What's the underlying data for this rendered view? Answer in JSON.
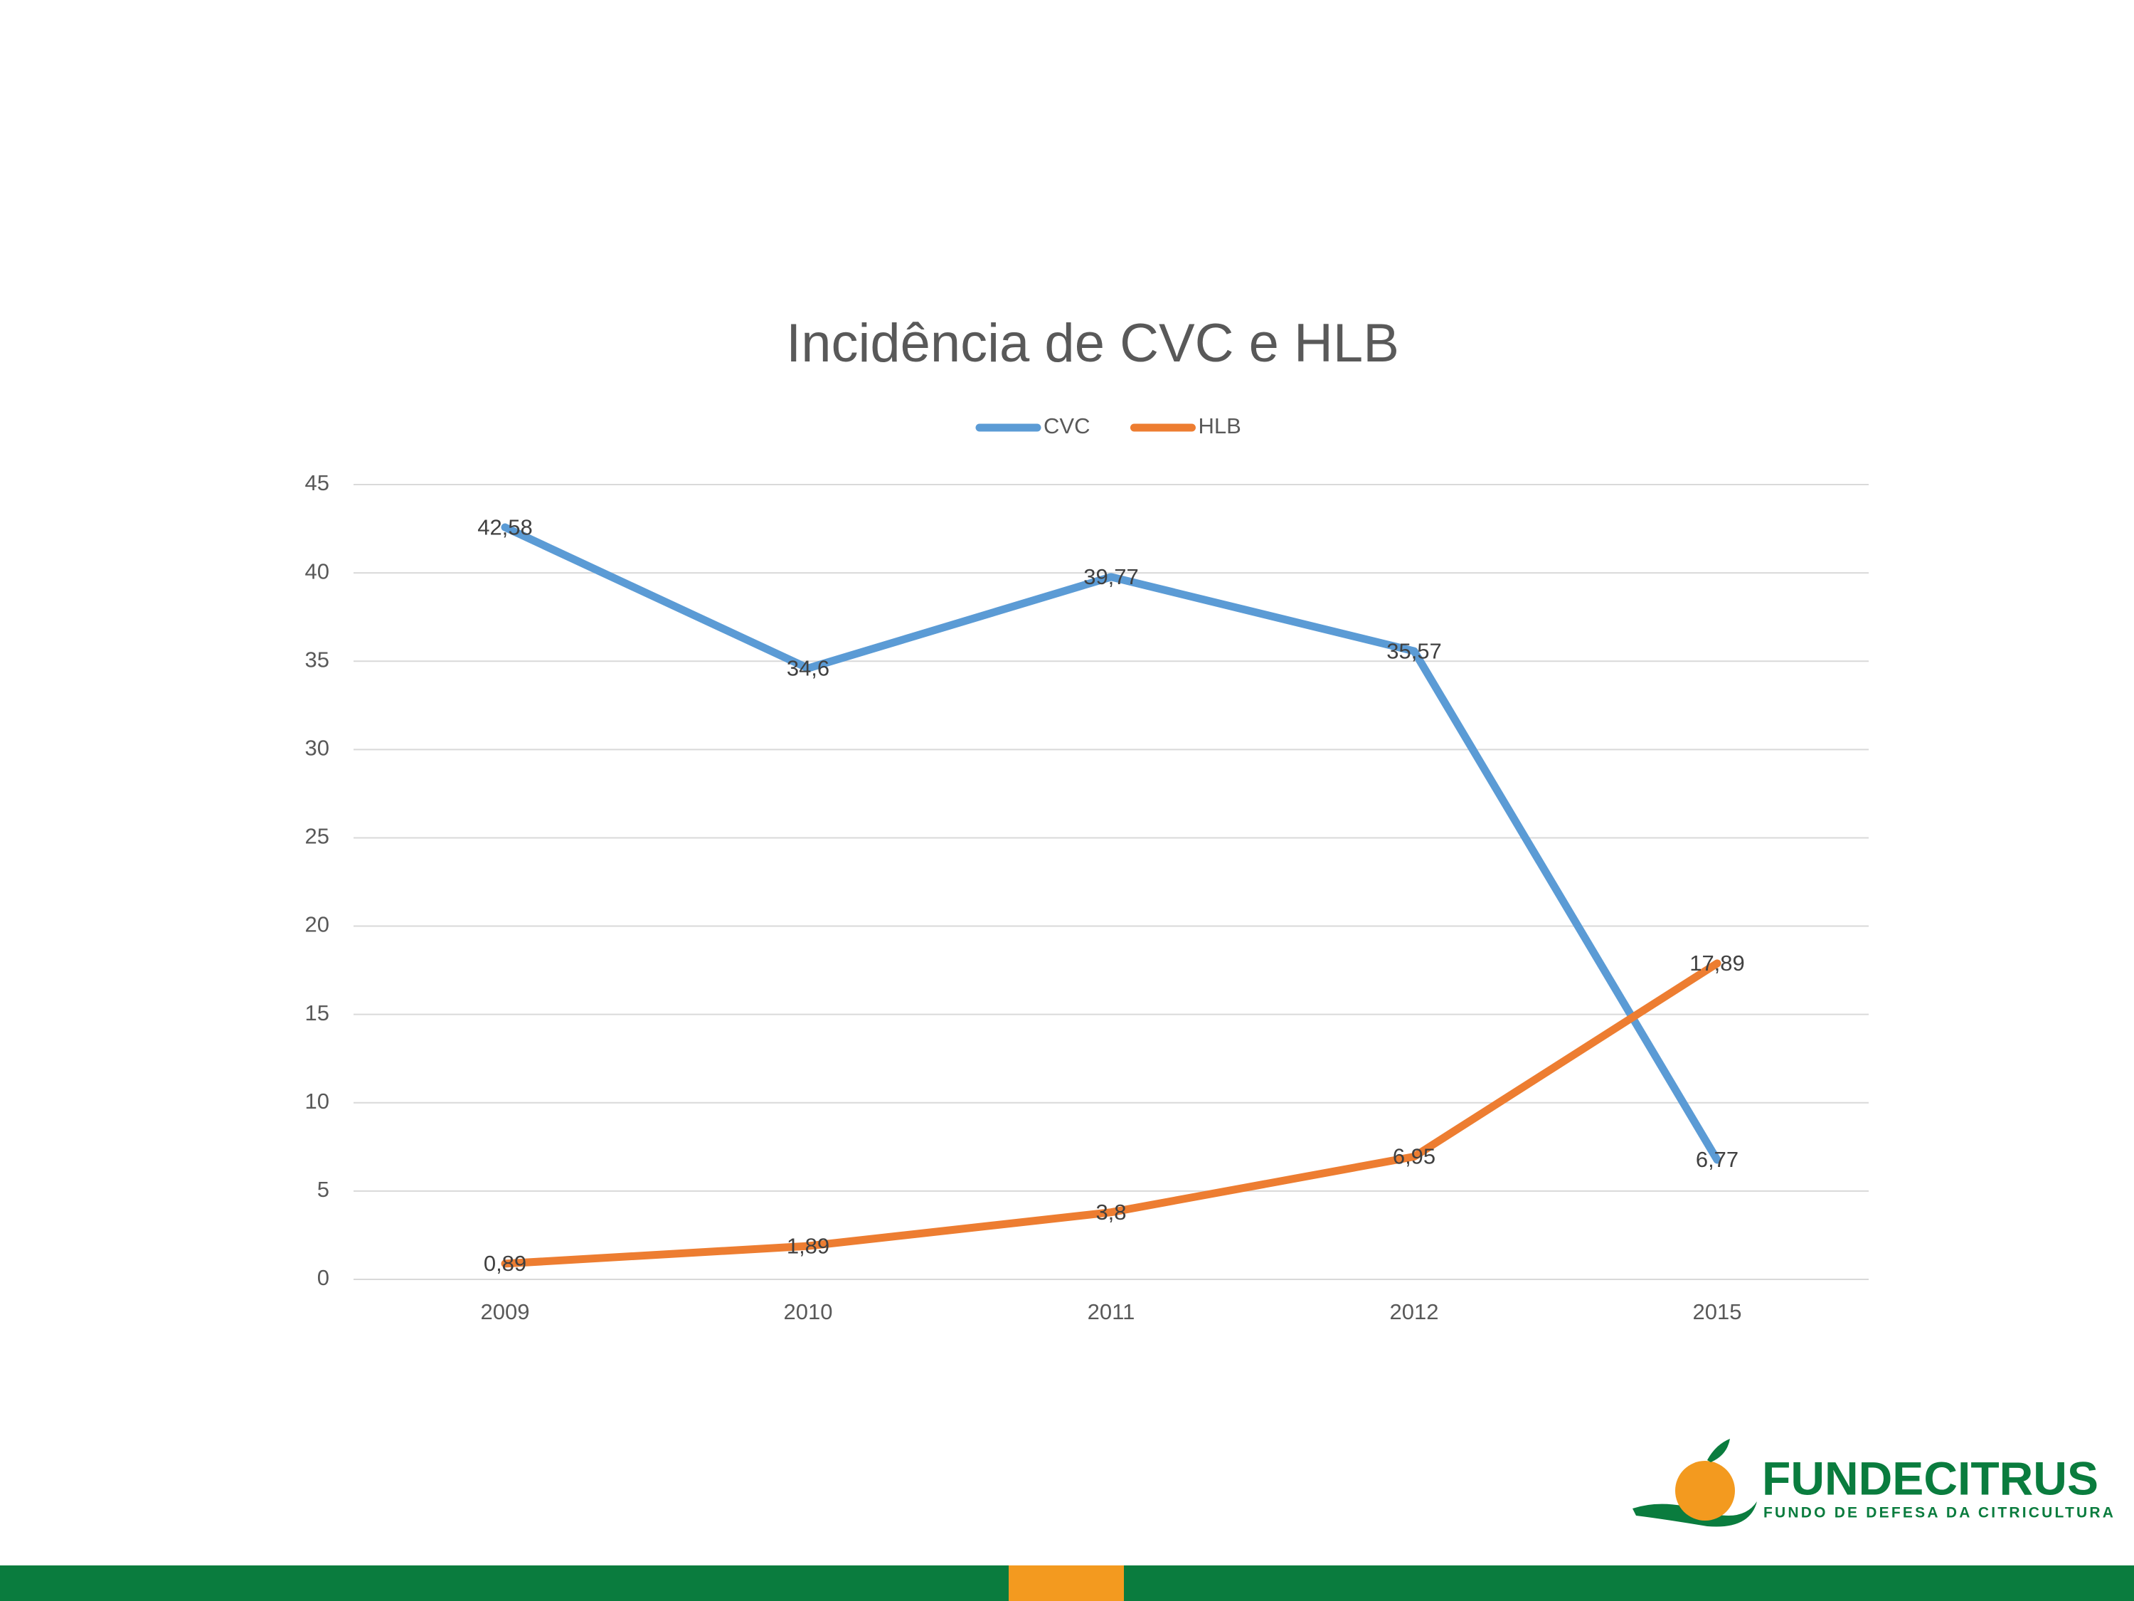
{
  "chart_data": {
    "type": "line",
    "title": "Incidência de CVC e HLB",
    "categories": [
      "2009",
      "2010",
      "2011",
      "2012",
      "2015"
    ],
    "series": [
      {
        "name": "CVC",
        "color": "#5b9bd5",
        "values": [
          42.58,
          34.6,
          39.77,
          35.57,
          6.77
        ],
        "value_labels": [
          "42,58",
          "34,6",
          "39,77",
          "35,57",
          "6,77"
        ]
      },
      {
        "name": "HLB",
        "color": "#ed7d31",
        "values": [
          0.89,
          1.89,
          3.8,
          6.95,
          17.89
        ],
        "value_labels": [
          "0,89",
          "1,89",
          "3,8",
          "6,95",
          "17,89"
        ]
      }
    ],
    "ylim": [
      0,
      45
    ],
    "yticks": [
      0,
      5,
      10,
      15,
      20,
      25,
      30,
      35,
      40,
      45
    ],
    "grid": true,
    "legend": "top"
  },
  "logo": {
    "name": "FUNDECITRUS",
    "tagline": "FUNDO DE DEFESA DA CITRICULTURA"
  }
}
